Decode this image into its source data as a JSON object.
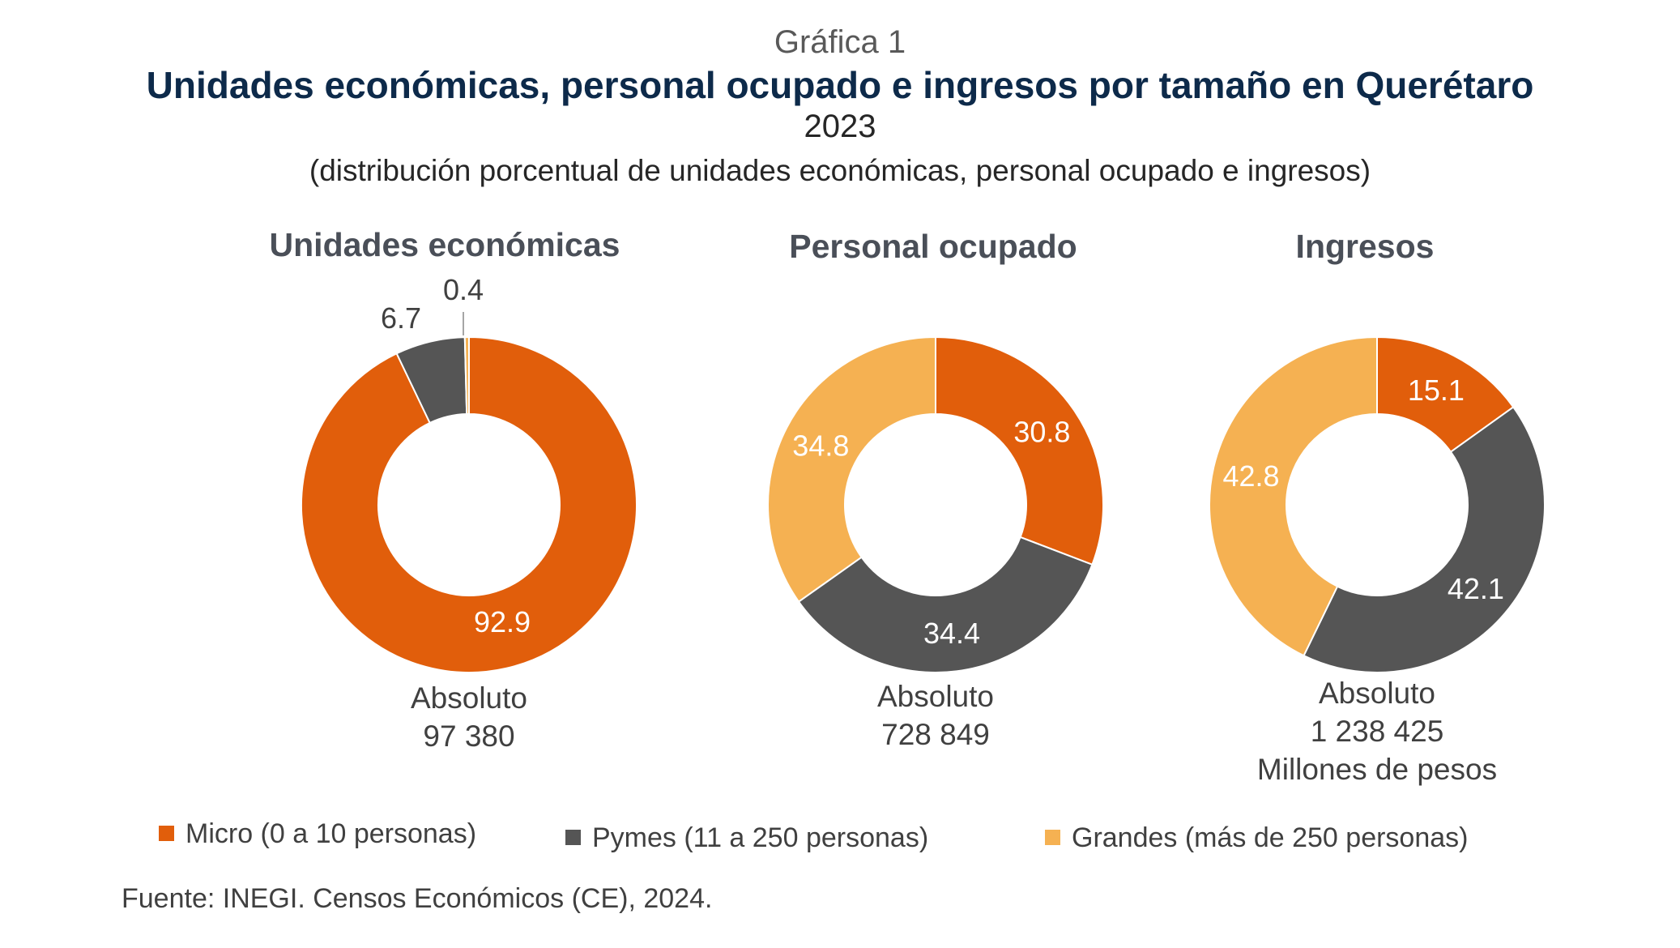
{
  "header": {
    "label": "Gráfica 1",
    "title": "Unidades económicas, personal ocupado e ingresos por tamaño en Querétaro",
    "year": "2023",
    "subtitle": "(distribución porcentual de unidades económicas, personal ocupado e ingresos)"
  },
  "colors": {
    "micro": "#e15e0b",
    "pymes": "#555555",
    "grandes": "#f5b152",
    "label_dark": "#404040",
    "label_light": "#ffffff"
  },
  "legend": [
    {
      "key": "micro",
      "label": "Micro (0 a 10 personas)"
    },
    {
      "key": "pymes",
      "label": "Pymes (11 a 250 personas)"
    },
    {
      "key": "grandes",
      "label": "Grandes (más de 250 personas)"
    }
  ],
  "source": "Fuente: INEGI. Censos Económicos (CE), 2024.",
  "chart_data": [
    {
      "type": "donut",
      "title": "Unidades económicas",
      "categories": [
        "Micro",
        "Pymes",
        "Grandes"
      ],
      "values": [
        92.9,
        6.7,
        0.4
      ],
      "absolute_label": "Absoluto",
      "absolute_value": "97 380",
      "absolute_unit": ""
    },
    {
      "type": "donut",
      "title": "Personal ocupado",
      "categories": [
        "Micro",
        "Pymes",
        "Grandes"
      ],
      "values": [
        30.8,
        34.4,
        34.8
      ],
      "absolute_label": "Absoluto",
      "absolute_value": "728 849",
      "absolute_unit": ""
    },
    {
      "type": "donut",
      "title": "Ingresos",
      "categories": [
        "Micro",
        "Pymes",
        "Grandes"
      ],
      "values": [
        15.1,
        42.1,
        42.8
      ],
      "absolute_label": "Absoluto",
      "absolute_value": "1 238 425",
      "absolute_unit": "Millones de pesos"
    }
  ]
}
